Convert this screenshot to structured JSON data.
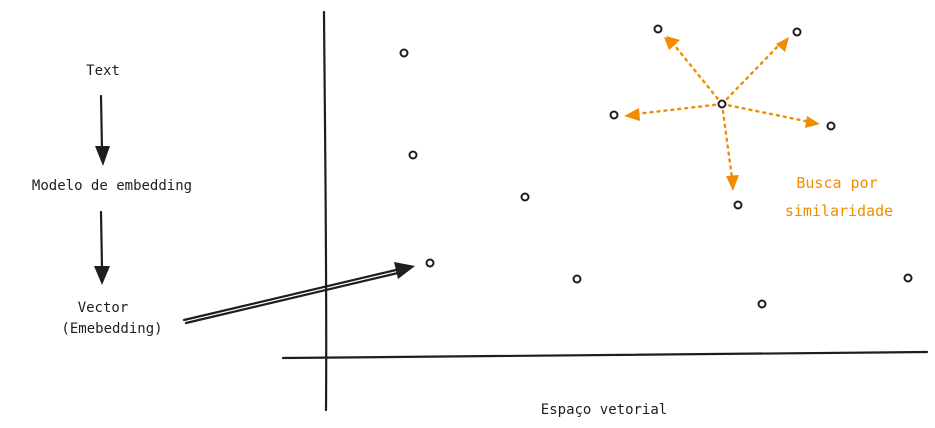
{
  "pipeline": {
    "text_label": "Text",
    "model_label": "Modelo de embedding",
    "vector_label_line1": "Vector",
    "vector_label_line2": "(Emebedding)"
  },
  "vector_space": {
    "axis_label": "Espaço vetorial",
    "similarity_label_line1": "Busca por",
    "similarity_label_line2": "similaridade"
  },
  "colors": {
    "ink": "#1e1e1e",
    "accent": "#f08c00"
  }
}
